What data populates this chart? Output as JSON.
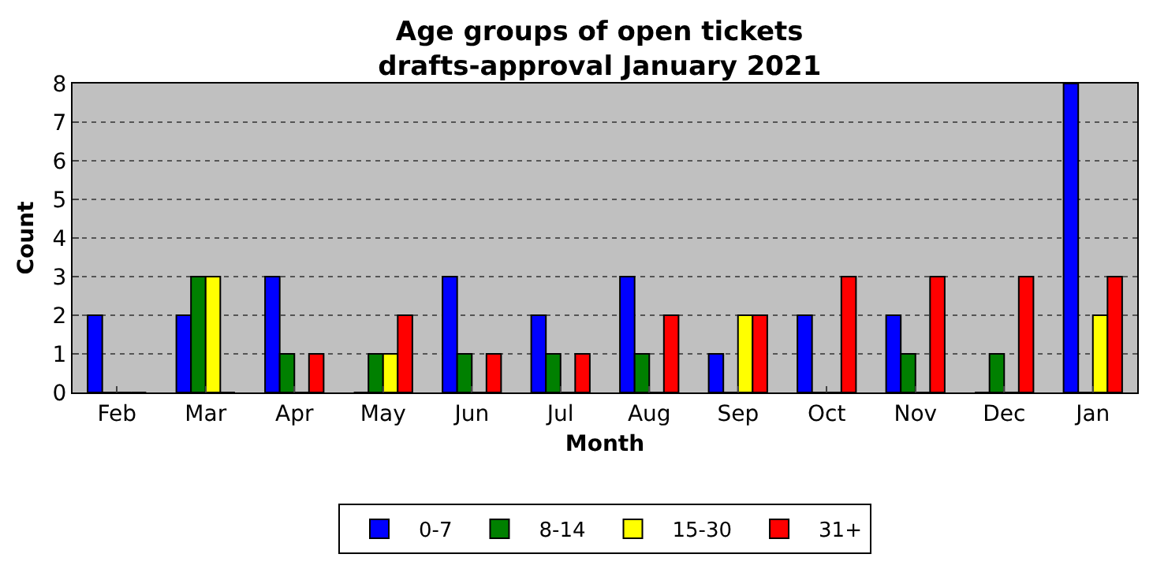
{
  "chart_data": {
    "type": "bar",
    "title": "Age groups of open tickets\ndrafts-approval January 2021",
    "xlabel": "Month",
    "ylabel": "Count",
    "categories": [
      "Feb",
      "Mar",
      "Apr",
      "May",
      "Jun",
      "Jul",
      "Aug",
      "Sep",
      "Oct",
      "Nov",
      "Dec",
      "Jan"
    ],
    "series": [
      {
        "name": "0-7",
        "color": "#0000ff",
        "values": [
          2,
          2,
          3,
          0,
          3,
          2,
          3,
          1,
          2,
          2,
          0,
          8
        ]
      },
      {
        "name": "8-14",
        "color": "#008000",
        "values": [
          0,
          3,
          1,
          1,
          1,
          1,
          1,
          0,
          0,
          1,
          1,
          0
        ]
      },
      {
        "name": "15-30",
        "color": "#ffff00",
        "values": [
          0,
          3,
          0,
          1,
          0,
          0,
          0,
          2,
          0,
          0,
          0,
          2
        ]
      },
      {
        "name": "31+",
        "color": "#ff0000",
        "values": [
          0,
          0,
          1,
          2,
          1,
          1,
          2,
          2,
          3,
          3,
          3,
          3
        ]
      }
    ],
    "ylim": [
      0,
      8
    ],
    "yticks": [
      0,
      1,
      2,
      3,
      4,
      5,
      6,
      7,
      8
    ],
    "grid": "y",
    "legend": "bottom"
  }
}
